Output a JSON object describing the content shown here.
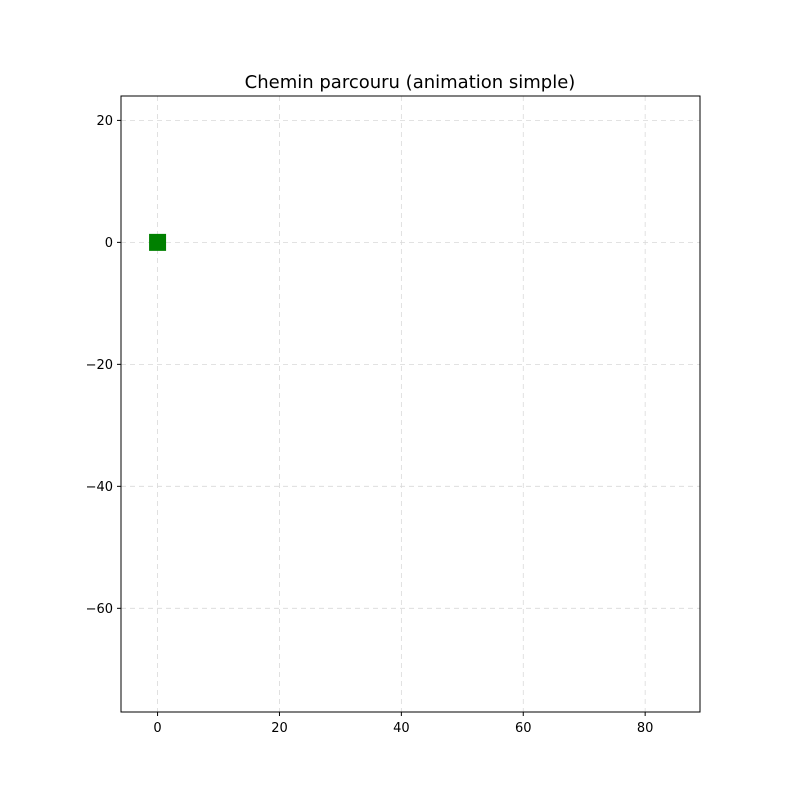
{
  "chart_data": {
    "type": "scatter",
    "title": "Chemin parcouru (animation simple)",
    "xlabel": "",
    "ylabel": "",
    "xlim": [
      -6,
      89
    ],
    "ylim": [
      -77,
      24
    ],
    "x_ticks": [
      0,
      20,
      40,
      60,
      80
    ],
    "y_ticks": [
      20,
      0,
      -20,
      -40,
      -60
    ],
    "x_tick_labels": [
      "0",
      "20",
      "40",
      "60",
      "80"
    ],
    "y_tick_labels": [
      "20",
      "0",
      "−20",
      "−40",
      "−60"
    ],
    "grid": true,
    "points": [
      {
        "x": 0,
        "y": 0,
        "marker": "square",
        "color": "#008000"
      }
    ],
    "colors": {
      "grid": "#d9d9d9",
      "axes": "#000000",
      "marker": "#008000"
    }
  }
}
